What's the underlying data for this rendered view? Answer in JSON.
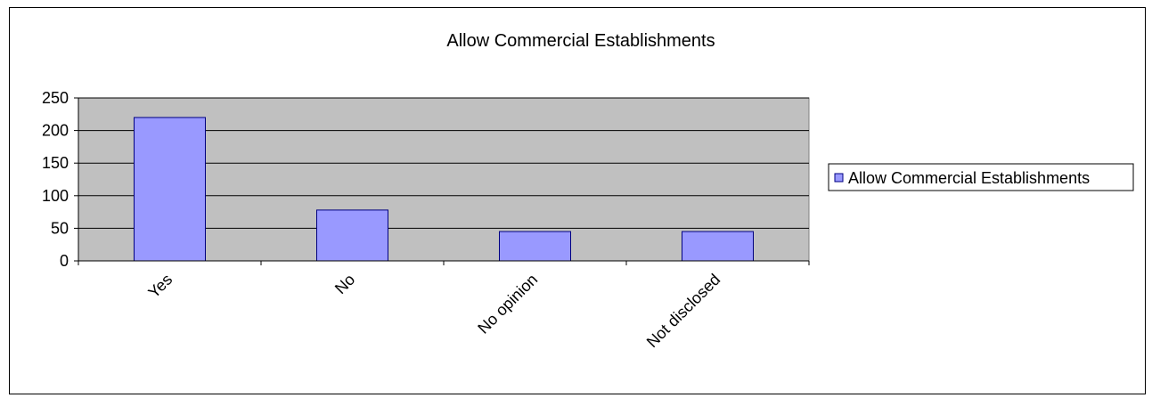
{
  "chart_data": {
    "type": "bar",
    "title": "Allow Commercial Establishments",
    "xlabel": "",
    "ylabel": "",
    "categories": [
      "Yes",
      "No",
      "No opinion",
      "Not disclosed"
    ],
    "series": [
      {
        "name": "Allow Commercial Establishments",
        "values": [
          220,
          78,
          45,
          45
        ],
        "color": "#9999ff"
      }
    ],
    "ylim": [
      0,
      250
    ],
    "yticks": [
      0,
      50,
      100,
      150,
      200,
      250
    ],
    "grid": true,
    "legend": "right",
    "colors": {
      "plot_area": "#c0c0c0",
      "bar_fill": "#9999ff",
      "bar_stroke": "#000080"
    }
  }
}
